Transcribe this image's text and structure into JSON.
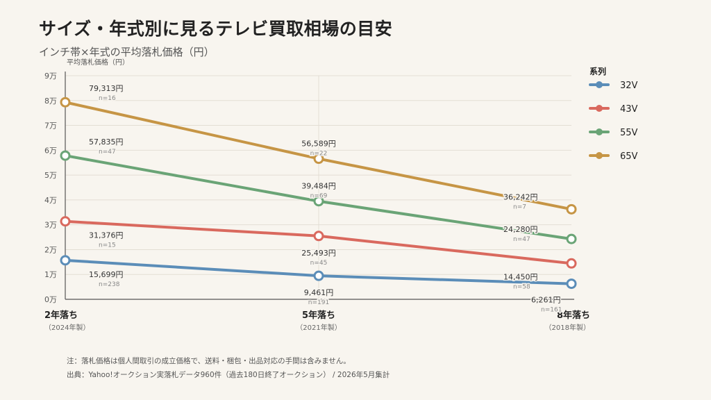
{
  "title": "サイズ・年式別に見るテレビ買取相場の目安",
  "subtitle": "インチ帯×年式の平均落札価格（円）",
  "notes": [
    "注：落札価格は個人間取引の成立価格で、送料・梱包・出品対応の手間は含みません。",
    "出典：Yahoo!オークション実落札データ960件（過去180日終了オークション） / 2026年5月集計"
  ],
  "chart_data": {
    "type": "line",
    "ylabel": "平均落札価格（円）",
    "ylim": [
      0,
      90000
    ],
    "yticks": [
      0,
      10000,
      20000,
      30000,
      40000,
      50000,
      60000,
      70000,
      80000,
      90000
    ],
    "ytick_labels": [
      "0万",
      "1万",
      "2万",
      "3万",
      "4万",
      "5万",
      "6万",
      "7万",
      "8万",
      "9万"
    ],
    "categories": [
      "2年落ち",
      "5年落ち",
      "8年落ち"
    ],
    "category_sublabels": [
      "（2024年製）",
      "（2021年製）",
      "（2018年製）"
    ],
    "grid": true,
    "legend_title": "系列",
    "legend_position": "right",
    "series": [
      {
        "name": "32V",
        "color": "#5b8db8",
        "values": [
          15699,
          9461,
          6261
        ],
        "labels": [
          "15,699円",
          "9,461円",
          "6,261円"
        ],
        "counts": [
          "n=238",
          "n=191",
          "n=161"
        ]
      },
      {
        "name": "43V",
        "color": "#d9695e",
        "values": [
          31376,
          25493,
          14450
        ],
        "labels": [
          "31,376円",
          "25,493円",
          "14,450円"
        ],
        "counts": [
          "n=15",
          "n=45",
          "n=58"
        ]
      },
      {
        "name": "55V",
        "color": "#6aa476",
        "values": [
          57835,
          39484,
          24280
        ],
        "labels": [
          "57,835円",
          "39,484円",
          "24,280円"
        ],
        "counts": [
          "n=47",
          "n=69",
          "n=47"
        ]
      },
      {
        "name": "65V",
        "color": "#c69545",
        "values": [
          79313,
          56589,
          36242
        ],
        "labels": [
          "79,313円",
          "56,589円",
          "36,242円"
        ],
        "counts": [
          "n=16",
          "n=22",
          "n=7"
        ]
      }
    ]
  }
}
